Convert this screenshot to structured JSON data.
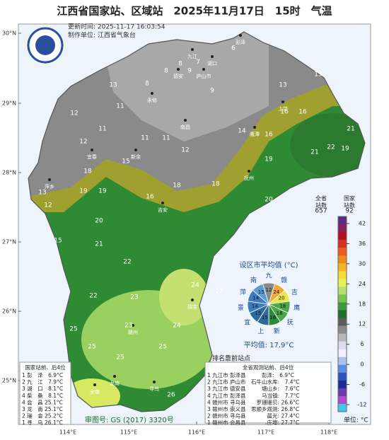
{
  "title": "江西省国家站、区域站　2025年11月17日　15时　气温",
  "update_time": "更新时间: 2025-11-17 16:03:54",
  "producer": "制作单位: 江西省气象台",
  "lat_labels": [
    "30°N",
    "29°N",
    "28°N",
    "27°N",
    "26°N",
    "25°N"
  ],
  "lon_labels": [
    "114°E",
    "115°E",
    "116°E",
    "117°E",
    "118°E"
  ],
  "cities": [
    "彭泽",
    "九江",
    "湖口",
    "庐山市",
    "德安",
    "永修",
    "南昌",
    "上饶",
    "鹰潭",
    "抚州",
    "新余",
    "宜春",
    "萍乡",
    "吉安",
    "赣州",
    "寻乌",
    "全南",
    "龙南",
    "瑞金"
  ],
  "station_values": [
    6,
    8,
    8,
    9,
    7,
    9,
    8,
    11,
    12,
    13,
    13,
    16,
    16,
    11,
    12,
    11,
    11,
    12,
    13,
    14,
    16,
    21,
    21,
    22,
    19,
    18,
    19,
    19,
    15,
    16,
    13,
    12,
    18,
    18,
    19,
    20,
    15,
    20,
    21,
    22,
    22,
    23,
    24,
    23,
    25,
    25,
    26,
    25,
    25,
    24,
    23
  ],
  "counts": [
    {
      "label": "全省站数",
      "value": "657"
    },
    {
      "label": "国家站数",
      "value": "92"
    }
  ],
  "colorbar": {
    "ticks": [
      42,
      36,
      30,
      24,
      18,
      12,
      6,
      0,
      -6,
      -12
    ],
    "colors": [
      "#5b2a86",
      "#8a1e5a",
      "#b01020",
      "#d83020",
      "#f05a20",
      "#f08a20",
      "#f4b42a",
      "#f4dc3a",
      "#e8f05a",
      "#b8e070",
      "#78c450",
      "#3c9a3c",
      "#1e6e2e",
      "#5c5c5c",
      "#8a8a8a",
      "#b8b8b8",
      "#dcdcec",
      "#f0f0ff",
      "#aac4f0",
      "#5e8ee0",
      "#2a52c0",
      "#1a2a90",
      "#6a3aa8",
      "#b04ad0",
      "#40c8e8"
    ],
    "unit": "单位: °C"
  },
  "pie": {
    "title": "设区市平均值 (°C)",
    "names": [
      "九",
      "赣",
      "吉",
      "鹰",
      "抚",
      "新",
      "上",
      "宜",
      "景",
      "萍",
      "南"
    ],
    "values": [
      "12",
      "24",
      "20",
      "18",
      "18",
      "16",
      "15",
      "15",
      "14",
      "14",
      "15"
    ],
    "colors": [
      "#8a8a8a",
      "#f4a83a",
      "#e8e84a",
      "#4aa84a",
      "#4aa84a",
      "#2c8a3c",
      "#2c6a9c",
      "#2c6a9c",
      "#3c7cc4",
      "#3c7cc4",
      "#5c9cd4"
    ],
    "average": "平均值: 17.9°C"
  },
  "ranking_title": "排名靠前站点",
  "national_table": {
    "header": "国家站前、后4位",
    "rows": [
      "1 彭　泽　6.9°C",
      "2 九　江　7.9°C",
      "3 湖　口　8.1°C",
      "4 柴　桑　8.1°C",
      "4 会　昌 25.1°C",
      "3 龙　南 25.1°C",
      "2 瑞　金 25.2°C",
      "1 寻　乌 26.1°C"
    ]
  },
  "all_table": {
    "header": "全省观测站前、后4位",
    "rows": [
      "1 九江市 彭泽县　　　彭泽:　6.9°C",
      "2 九江市 庐山市　石牛山水库:　7.4°C",
      "3 九江市 德安县　　　塘山乡:　7.6°C",
      "4 九江市 彭泽县　　　马当镇:　7.7°C",
      "4 赣州市 寻乌县　　罗珊珊贝: 26.6°C",
      "3 赣州市 崇义县　思顺乡观测: 26.8°C",
      "2 赣州市 寻乌县　　　　晨光: 27.4°C",
      "1 赣州市 会昌县　　　　庄埠: 27.7°C"
    ]
  },
  "review_number": "审图号: GS (2017) 3320号"
}
